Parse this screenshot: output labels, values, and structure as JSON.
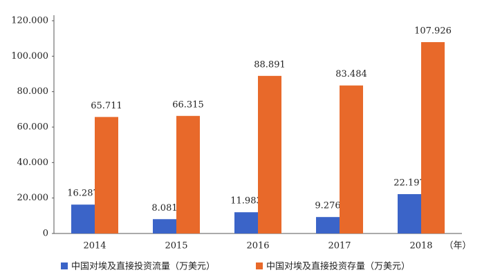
{
  "chart_data": {
    "type": "bar",
    "categories": [
      "2014",
      "2015",
      "2016",
      "2017",
      "2018"
    ],
    "x_unit_label": "（年）",
    "series": [
      {
        "name": "中国对埃及直接投资流量（万美元）",
        "color": "#3b64c8",
        "values": [
          16287,
          8081,
          11983,
          9276,
          22197
        ],
        "value_labels": [
          "16.287",
          "8.081",
          "11.983",
          "9.276",
          "22.197"
        ]
      },
      {
        "name": "中国对埃及直接投资存量（万美元）",
        "color": "#e8692a",
        "values": [
          65711,
          66315,
          88891,
          83484,
          107926
        ],
        "value_labels": [
          "65.711",
          "66.315",
          "88.891",
          "83.484",
          "107.926"
        ]
      }
    ],
    "ylim": [
      0,
      120000
    ],
    "yticks": [
      0,
      {
        "value": 20000,
        "label": "20.000"
      },
      {
        "value": 40000,
        "label": "40.000"
      },
      {
        "value": 60000,
        "label": "60.000"
      },
      {
        "value": 80000,
        "label": "80.000"
      },
      {
        "value": 100000,
        "label": "100.000"
      },
      {
        "value": 120000,
        "label": "120.000"
      }
    ],
    "grid": false,
    "legend": "bottom"
  }
}
